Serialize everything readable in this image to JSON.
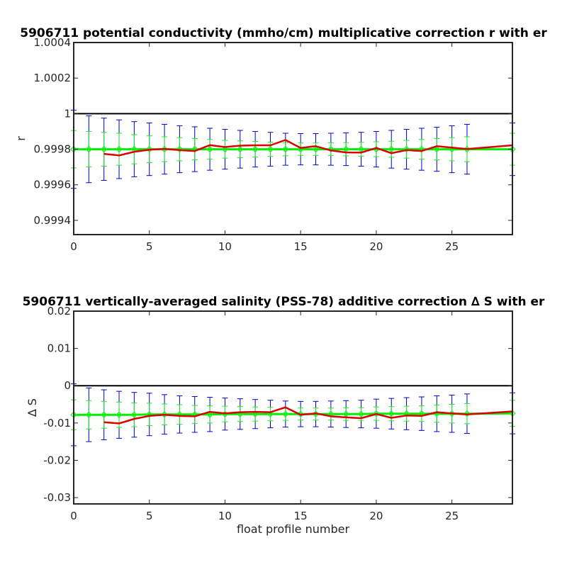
{
  "colors": {
    "background": "#ffffff",
    "axes": "#262626",
    "reference_line": "#000000",
    "float_errorbar": "#0000cc",
    "mapped_errorbar": "#22ee22",
    "mapped_line": "#00ee00",
    "float_line": "#dd0000"
  },
  "chart_data": [
    {
      "type": "line",
      "title": "5906711 potential conductivity (mmho/cm) multiplicative correction r with er",
      "xlabel": "",
      "ylabel": "r",
      "xlim": [
        0,
        29
      ],
      "ylim": [
        0.99932,
        1.0004
      ],
      "xticks": [
        0,
        5,
        10,
        15,
        20,
        25
      ],
      "xtick_labels": [
        "0",
        "5",
        "10",
        "15",
        "20",
        "25"
      ],
      "yticks": [
        0.9994,
        0.9996,
        0.9998,
        1,
        1.0002,
        1.0004
      ],
      "ytick_labels": [
        "0.9994",
        "0.9996",
        "0.9998",
        "1",
        "1.0002",
        "1.0004"
      ],
      "reference_y": 1.0,
      "grid": false,
      "legend": "none",
      "series": [
        {
          "role": "error_bars_wide",
          "marker": "none",
          "x": [
            0,
            1,
            2,
            3,
            4,
            5,
            6,
            7,
            8,
            9,
            10,
            11,
            12,
            13,
            14,
            15,
            16,
            17,
            18,
            19,
            20,
            21,
            22,
            23,
            24,
            25,
            26,
            29
          ],
          "y": [
            0.9998,
            0.9998,
            0.9998,
            0.9998,
            0.9998,
            0.9998,
            0.9998,
            0.9998,
            0.9998,
            0.9998,
            0.9998,
            0.9998,
            0.9998,
            0.9998,
            0.9998,
            0.9998,
            0.9998,
            0.9998,
            0.9998,
            0.9998,
            0.9998,
            0.9998,
            0.9998,
            0.9998,
            0.9998,
            0.9998,
            0.9998,
            0.9998
          ],
          "err": [
            0.00022,
            0.000188,
            0.000175,
            0.000165,
            0.000155,
            0.000148,
            0.00014,
            0.000132,
            0.000126,
            0.000118,
            0.000112,
            0.000106,
            0.0001,
            9.5e-05,
            9e-05,
            8.8e-05,
            8.8e-05,
            9e-05,
            9.2e-05,
            9.5e-05,
            0.0001,
            0.000106,
            0.000112,
            0.000118,
            0.000124,
            0.000132,
            0.00014,
            0.000148
          ]
        },
        {
          "role": "error_bars_narrow",
          "marker": "diamond",
          "x": [
            0,
            1,
            2,
            3,
            4,
            5,
            6,
            7,
            8,
            9,
            10,
            11,
            12,
            13,
            14,
            15,
            16,
            17,
            18,
            19,
            20,
            21,
            22,
            23,
            24,
            25,
            26,
            29
          ],
          "y": [
            0.9998,
            0.9998,
            0.9998,
            0.9998,
            0.9998,
            0.9998,
            0.9998,
            0.9998,
            0.9998,
            0.9998,
            0.9998,
            0.9998,
            0.9998,
            0.9998,
            0.9998,
            0.9998,
            0.9998,
            0.9998,
            0.9998,
            0.9998,
            0.9998,
            0.9998,
            0.9998,
            0.9998,
            0.9998,
            0.9998,
            0.9998,
            0.9998
          ],
          "err": [
            0.000105,
            0.0001,
            9.5e-05,
            9e-05,
            8.2e-05,
            7.5e-05,
            7e-05,
            6.5e-05,
            6e-05,
            5.5e-05,
            5e-05,
            4.7e-05,
            4.4e-05,
            4e-05,
            3.7e-05,
            3.5e-05,
            3.5e-05,
            3.6e-05,
            3.7e-05,
            3.9e-05,
            4.2e-05,
            4.5e-05,
            5e-05,
            5.5e-05,
            6e-05,
            6.5e-05,
            7e-05,
            9e-05
          ]
        },
        {
          "role": "line_float",
          "marker": "none",
          "x": [
            2,
            3,
            4,
            5,
            6,
            7,
            8,
            9,
            10,
            11,
            12,
            13,
            14,
            15,
            16,
            17,
            18,
            19,
            20,
            21,
            22,
            23,
            24,
            25,
            26,
            29
          ],
          "y": [
            0.999774,
            0.999765,
            0.999786,
            0.999797,
            0.999802,
            0.999795,
            0.99979,
            0.999823,
            0.999812,
            0.99982,
            0.999822,
            0.999822,
            0.999852,
            0.999807,
            0.999817,
            0.999793,
            0.999782,
            0.999781,
            0.999807,
            0.999778,
            0.999795,
            0.99979,
            0.999817,
            0.999809,
            0.999801,
            0.999822
          ]
        }
      ]
    },
    {
      "type": "line",
      "title": "5906711 vertically-averaged salinity (PSS-78) additive correction ∆ S with er",
      "xlabel": "float profile number",
      "ylabel": "∆ S",
      "xlim": [
        0,
        29
      ],
      "ylim": [
        -0.0317,
        0.02
      ],
      "xticks": [
        0,
        5,
        10,
        15,
        20,
        25
      ],
      "xtick_labels": [
        "0",
        "5",
        "10",
        "15",
        "20",
        "25"
      ],
      "yticks": [
        -0.03,
        -0.02,
        -0.01,
        0,
        0.01,
        0.02
      ],
      "ytick_labels": [
        "-0.03",
        "-0.02",
        "-0.01",
        "0",
        "0.01",
        "0.02"
      ],
      "reference_y": 0,
      "grid": false,
      "legend": "none",
      "series": [
        {
          "role": "error_bars_wide",
          "marker": "none",
          "x": [
            0,
            1,
            2,
            3,
            4,
            5,
            6,
            7,
            8,
            9,
            10,
            11,
            12,
            13,
            14,
            15,
            16,
            17,
            18,
            19,
            20,
            21,
            22,
            23,
            24,
            25,
            26,
            29
          ],
          "y": [
            -0.0078,
            -0.0078,
            -0.0078,
            -0.0078,
            -0.0078,
            -0.0077,
            -0.0077,
            -0.0077,
            -0.0077,
            -0.0077,
            -0.0076,
            -0.0076,
            -0.0076,
            -0.0076,
            -0.0076,
            -0.0076,
            -0.0076,
            -0.0076,
            -0.0076,
            -0.0076,
            -0.0075,
            -0.0075,
            -0.0075,
            -0.0075,
            -0.0075,
            -0.0075,
            -0.0075,
            -0.0074
          ],
          "err": [
            0.0083,
            0.0072,
            0.0067,
            0.0063,
            0.006,
            0.0057,
            0.0053,
            0.005,
            0.0048,
            0.0046,
            0.0043,
            0.0041,
            0.0039,
            0.0037,
            0.0035,
            0.0034,
            0.0034,
            0.0035,
            0.0036,
            0.0037,
            0.0039,
            0.0041,
            0.0043,
            0.0045,
            0.0048,
            0.005,
            0.0053,
            0.0055
          ]
        },
        {
          "role": "error_bars_narrow",
          "marker": "diamond",
          "x": [
            0,
            1,
            2,
            3,
            4,
            5,
            6,
            7,
            8,
            9,
            10,
            11,
            12,
            13,
            14,
            15,
            16,
            17,
            18,
            19,
            20,
            21,
            22,
            23,
            24,
            25,
            26,
            29
          ],
          "y": [
            -0.0078,
            -0.0078,
            -0.0078,
            -0.0078,
            -0.0078,
            -0.0077,
            -0.0077,
            -0.0077,
            -0.0077,
            -0.0077,
            -0.0076,
            -0.0076,
            -0.0076,
            -0.0076,
            -0.0076,
            -0.0076,
            -0.0076,
            -0.0076,
            -0.0076,
            -0.0076,
            -0.0075,
            -0.0075,
            -0.0075,
            -0.0075,
            -0.0075,
            -0.0075,
            -0.0075,
            -0.0074
          ],
          "err": [
            0.004,
            0.0038,
            0.0036,
            0.0034,
            0.0032,
            0.003,
            0.0028,
            0.0026,
            0.0024,
            0.0023,
            0.0021,
            0.002,
            0.0019,
            0.0018,
            0.0017,
            0.0016,
            0.0016,
            0.0016,
            0.0017,
            0.0017,
            0.0018,
            0.0019,
            0.002,
            0.0021,
            0.0023,
            0.0025,
            0.0027,
            0.0035
          ]
        },
        {
          "role": "line_float",
          "marker": "none",
          "x": [
            2,
            3,
            4,
            5,
            6,
            7,
            8,
            9,
            10,
            11,
            12,
            13,
            14,
            15,
            16,
            17,
            18,
            19,
            20,
            21,
            22,
            23,
            24,
            25,
            26,
            29
          ],
          "y": [
            -0.0098,
            -0.0101,
            -0.0089,
            -0.0081,
            -0.0078,
            -0.0081,
            -0.0082,
            -0.007,
            -0.0074,
            -0.0071,
            -0.007,
            -0.0071,
            -0.0058,
            -0.0078,
            -0.0074,
            -0.0082,
            -0.0085,
            -0.0087,
            -0.0076,
            -0.0086,
            -0.008,
            -0.0081,
            -0.0071,
            -0.0074,
            -0.0077,
            -0.0069
          ]
        }
      ]
    }
  ]
}
